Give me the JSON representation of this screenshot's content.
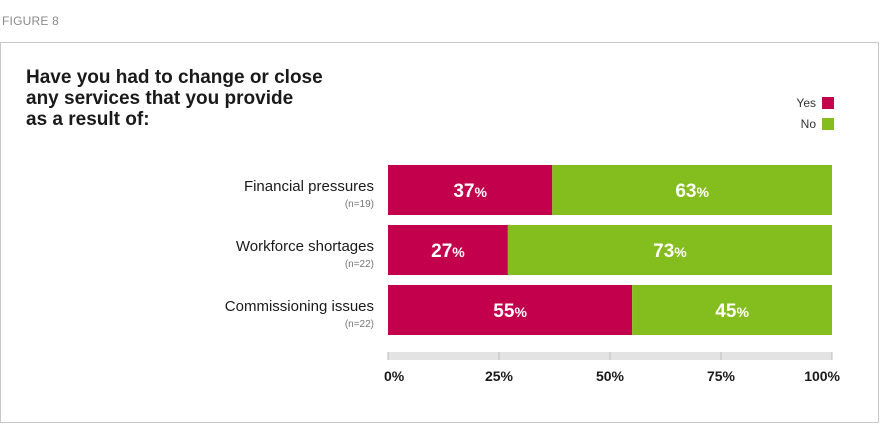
{
  "figure_label": "FIGURE 8",
  "chart_data": {
    "type": "bar",
    "orientation": "horizontal",
    "stacked": true,
    "title_lines": [
      "Have you had to change or close",
      "any services that you provide",
      "as a result of:"
    ],
    "categories": [
      "Financial pressures",
      "Workforce shortages",
      "Commissioning issues"
    ],
    "sample_sizes": [
      "(n=19)",
      "(n=22)",
      "(n=22)"
    ],
    "series": [
      {
        "name": "Yes",
        "color": "#c2004b",
        "values": [
          37,
          27,
          55
        ]
      },
      {
        "name": "No",
        "color": "#84bd1e",
        "values": [
          63,
          73,
          45
        ]
      }
    ],
    "value_suffix": "%",
    "xlim": [
      0,
      100
    ],
    "xticks": [
      0,
      25,
      50,
      75,
      100
    ],
    "xtick_labels": [
      "0%",
      "25%",
      "50%",
      "75%",
      "100%"
    ],
    "legend_position": "top-right",
    "axis_track_color": "#e3e3e3"
  }
}
